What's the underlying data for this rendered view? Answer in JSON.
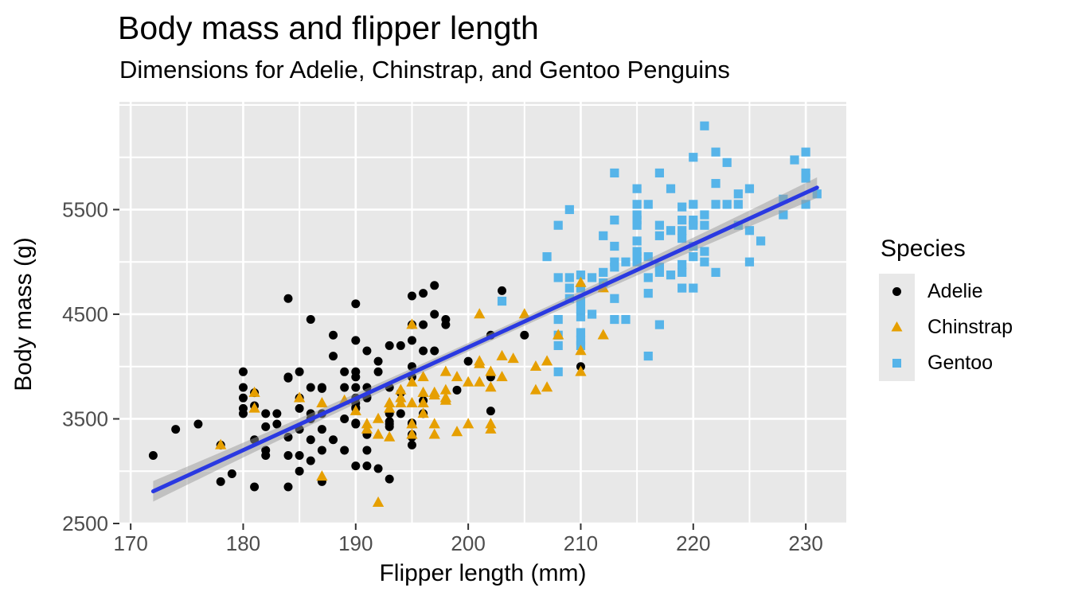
{
  "chart": {
    "title": "Body mass and flipper length",
    "subtitle": "Dimensions for Adelie, Chinstrap, and Gentoo Penguins",
    "xlabel": "Flipper length (mm)",
    "ylabel": "Body mass (g)"
  },
  "legend": {
    "title": "Species",
    "items": [
      {
        "label": "Adelie",
        "marker": "circle",
        "color": "#000000"
      },
      {
        "label": "Chinstrap",
        "marker": "triangle",
        "color": "#E69F00"
      },
      {
        "label": "Gentoo",
        "marker": "square",
        "color": "#56B4E9"
      }
    ]
  },
  "chart_data": {
    "type": "scatter",
    "title": "Body mass and flipper length",
    "subtitle": "Dimensions for Adelie, Chinstrap, and Gentoo Penguins",
    "xlabel": "Flipper length (mm)",
    "ylabel": "Body mass (g)",
    "legend_title": "Species",
    "legend_position": "right",
    "grid": "on",
    "panel_bg": "#e8e8e8",
    "grid_color": "#ffffff",
    "tick_label_color": "#4d4d4d",
    "x_domain": [
      169,
      233.6
    ],
    "y_domain": [
      2500,
      6530
    ],
    "x_ticks": [
      170,
      180,
      190,
      200,
      210,
      220,
      230
    ],
    "x_minor": [
      175,
      185,
      195,
      205,
      215,
      225
    ],
    "y_ticks": [
      2500,
      3500,
      4500,
      5500
    ],
    "y_minor": [
      3000,
      4000,
      5000,
      6000,
      6500
    ],
    "trend": {
      "type": "linear regression with confidence band",
      "slope": 49.2,
      "intercept": -5655,
      "x_start": 172,
      "x_end": 231,
      "line_color": "#2a39e1",
      "band_color": "#999999"
    },
    "series": [
      {
        "name": "Adelie",
        "marker": "circle",
        "color": "#000000",
        "points": [
          [
            172,
            3150
          ],
          [
            174,
            3400
          ],
          [
            176,
            3450
          ],
          [
            178,
            3250
          ],
          [
            178,
            2900
          ],
          [
            179,
            2975
          ],
          [
            180,
            3950
          ],
          [
            180,
            3800
          ],
          [
            180,
            3700
          ],
          [
            180,
            3600
          ],
          [
            180,
            3550
          ],
          [
            181,
            3750
          ],
          [
            181,
            3625
          ],
          [
            181,
            3300
          ],
          [
            181,
            2850
          ],
          [
            182,
            3550
          ],
          [
            182,
            3425
          ],
          [
            182,
            3200
          ],
          [
            182,
            3150
          ],
          [
            183,
            3550
          ],
          [
            183,
            3450
          ],
          [
            184,
            4650
          ],
          [
            184,
            3900
          ],
          [
            184,
            3890
          ],
          [
            184,
            3325
          ],
          [
            184,
            3150
          ],
          [
            184,
            2850
          ],
          [
            185,
            3950
          ],
          [
            185,
            3700
          ],
          [
            185,
            3600
          ],
          [
            185,
            3400
          ],
          [
            185,
            3150
          ],
          [
            185,
            3000
          ],
          [
            186,
            4450
          ],
          [
            186,
            3800
          ],
          [
            186,
            3550
          ],
          [
            186,
            3500
          ],
          [
            186,
            3300
          ],
          [
            186,
            3100
          ],
          [
            187,
            3800
          ],
          [
            187,
            3790
          ],
          [
            187,
            3550
          ],
          [
            187,
            3400
          ],
          [
            187,
            3200
          ],
          [
            187,
            2900
          ],
          [
            188,
            4300
          ],
          [
            188,
            4100
          ],
          [
            188,
            3300
          ],
          [
            189,
            3950
          ],
          [
            189,
            3800
          ],
          [
            189,
            3500
          ],
          [
            189,
            3200
          ],
          [
            190,
            4600
          ],
          [
            190,
            4250
          ],
          [
            190,
            3950
          ],
          [
            190,
            3900
          ],
          [
            190,
            3800
          ],
          [
            190,
            3700
          ],
          [
            190,
            3650
          ],
          [
            190,
            3600
          ],
          [
            190,
            3610
          ],
          [
            190,
            3450
          ],
          [
            190,
            3460
          ],
          [
            190,
            3050
          ],
          [
            191,
            4150
          ],
          [
            191,
            3800
          ],
          [
            191,
            3700
          ],
          [
            191,
            3710
          ],
          [
            191,
            3350
          ],
          [
            191,
            3200
          ],
          [
            191,
            3050
          ],
          [
            192,
            4050
          ],
          [
            192,
            3950
          ],
          [
            192,
            3025
          ],
          [
            193,
            4200
          ],
          [
            193,
            3800
          ],
          [
            193,
            3550
          ],
          [
            193,
            3475
          ],
          [
            193,
            3450
          ],
          [
            193,
            3425
          ],
          [
            193,
            2925
          ],
          [
            194,
            4200
          ],
          [
            194,
            3750
          ],
          [
            194,
            3550
          ],
          [
            195,
            4675
          ],
          [
            195,
            4400
          ],
          [
            195,
            4250
          ],
          [
            195,
            4000
          ],
          [
            195,
            3900
          ],
          [
            195,
            3450
          ],
          [
            195,
            3460
          ],
          [
            195,
            3350
          ],
          [
            195,
            3325
          ],
          [
            195,
            3250
          ],
          [
            196,
            4700
          ],
          [
            196,
            4400
          ],
          [
            196,
            4150
          ],
          [
            196,
            3675
          ],
          [
            196,
            3550
          ],
          [
            197,
            4775
          ],
          [
            197,
            4500
          ],
          [
            197,
            4150
          ],
          [
            198,
            4450
          ],
          [
            198,
            4400
          ],
          [
            199,
            3775
          ],
          [
            200,
            4050
          ],
          [
            202,
            4300
          ],
          [
            202,
            3900
          ],
          [
            202,
            3575
          ],
          [
            203,
            4725
          ],
          [
            205,
            4300
          ],
          [
            210,
            4000
          ]
        ]
      },
      {
        "name": "Chinstrap",
        "marker": "triangle",
        "color": "#E69F00",
        "points": [
          [
            178,
            3250
          ],
          [
            181,
            3750
          ],
          [
            181,
            3600
          ],
          [
            185,
            3700
          ],
          [
            187,
            3650
          ],
          [
            187,
            2950
          ],
          [
            189,
            3675
          ],
          [
            190,
            3575
          ],
          [
            191,
            3450
          ],
          [
            191,
            3400
          ],
          [
            192,
            3500
          ],
          [
            192,
            3350
          ],
          [
            192,
            2700
          ],
          [
            193,
            3650
          ],
          [
            193,
            3600
          ],
          [
            193,
            3325
          ],
          [
            194,
            3775
          ],
          [
            194,
            3700
          ],
          [
            194,
            3650
          ],
          [
            195,
            4400
          ],
          [
            195,
            3850
          ],
          [
            195,
            3650
          ],
          [
            195,
            3450
          ],
          [
            195,
            3350
          ],
          [
            196,
            3900
          ],
          [
            196,
            3750
          ],
          [
            196,
            3650
          ],
          [
            196,
            3550
          ],
          [
            197,
            3750
          ],
          [
            197,
            3725
          ],
          [
            197,
            3450
          ],
          [
            197,
            3350
          ],
          [
            198,
            3950
          ],
          [
            198,
            3775
          ],
          [
            198,
            3700
          ],
          [
            198,
            3675
          ],
          [
            199,
            3900
          ],
          [
            199,
            3375
          ],
          [
            200,
            3850
          ],
          [
            200,
            3450
          ],
          [
            201,
            4500
          ],
          [
            201,
            4050
          ],
          [
            201,
            4025
          ],
          [
            201,
            3850
          ],
          [
            202,
            3950
          ],
          [
            202,
            3800
          ],
          [
            202,
            3450
          ],
          [
            202,
            3400
          ],
          [
            203,
            4100
          ],
          [
            203,
            3900
          ],
          [
            204,
            4075
          ],
          [
            205,
            4500
          ],
          [
            206,
            4000
          ],
          [
            206,
            3775
          ],
          [
            207,
            4050
          ],
          [
            207,
            3800
          ],
          [
            208,
            4300
          ],
          [
            210,
            4800
          ],
          [
            210,
            4150
          ],
          [
            210,
            3950
          ],
          [
            212,
            4750
          ],
          [
            212,
            4300
          ]
        ]
      },
      {
        "name": "Gentoo",
        "marker": "square",
        "color": "#56B4E9",
        "points": [
          [
            203,
            4625
          ],
          [
            207,
            5050
          ],
          [
            208,
            5350
          ],
          [
            208,
            4850
          ],
          [
            208,
            4450
          ],
          [
            208,
            4300
          ],
          [
            208,
            4200
          ],
          [
            208,
            3950
          ],
          [
            209,
            5500
          ],
          [
            209,
            4850
          ],
          [
            209,
            4750
          ],
          [
            209,
            4650
          ],
          [
            210,
            4875
          ],
          [
            210,
            4750
          ],
          [
            210,
            4625
          ],
          [
            210,
            4550
          ],
          [
            210,
            4475
          ],
          [
            210,
            4325
          ],
          [
            210,
            4250
          ],
          [
            210,
            4200
          ],
          [
            211,
            4850
          ],
          [
            211,
            4500
          ],
          [
            212,
            5250
          ],
          [
            212,
            4900
          ],
          [
            212,
            4800
          ],
          [
            213,
            5850
          ],
          [
            213,
            5400
          ],
          [
            213,
            5150
          ],
          [
            213,
            5000
          ],
          [
            213,
            4950
          ],
          [
            213,
            4650
          ],
          [
            213,
            4450
          ],
          [
            214,
            5000
          ],
          [
            214,
            4450
          ],
          [
            215,
            5700
          ],
          [
            215,
            5550
          ],
          [
            215,
            5450
          ],
          [
            215,
            5400
          ],
          [
            215,
            5350
          ],
          [
            215,
            5200
          ],
          [
            215,
            5100
          ],
          [
            215,
            5050
          ],
          [
            215,
            5000
          ],
          [
            216,
            5550
          ],
          [
            216,
            5050
          ],
          [
            216,
            4850
          ],
          [
            216,
            4700
          ],
          [
            216,
            4100
          ],
          [
            217,
            5850
          ],
          [
            217,
            5350
          ],
          [
            217,
            5250
          ],
          [
            217,
            4950
          ],
          [
            217,
            4900
          ],
          [
            217,
            4400
          ],
          [
            218,
            5700
          ],
          [
            218,
            5300
          ],
          [
            218,
            4875
          ],
          [
            219,
            5525
          ],
          [
            219,
            5400
          ],
          [
            219,
            5300
          ],
          [
            219,
            5225
          ],
          [
            219,
            4975
          ],
          [
            219,
            4900
          ],
          [
            219,
            4750
          ],
          [
            220,
            6000
          ],
          [
            220,
            5550
          ],
          [
            220,
            5400
          ],
          [
            220,
            5350
          ],
          [
            220,
            5150
          ],
          [
            220,
            5050
          ],
          [
            220,
            4750
          ],
          [
            221,
            6300
          ],
          [
            221,
            5450
          ],
          [
            221,
            5350
          ],
          [
            221,
            5100
          ],
          [
            221,
            5000
          ],
          [
            222,
            6050
          ],
          [
            222,
            5750
          ],
          [
            222,
            5550
          ],
          [
            222,
            4900
          ],
          [
            223,
            5950
          ],
          [
            223,
            5550
          ],
          [
            224,
            5650
          ],
          [
            224,
            5550
          ],
          [
            224,
            5350
          ],
          [
            225,
            5700
          ],
          [
            225,
            5300
          ],
          [
            225,
            5000
          ],
          [
            226,
            5200
          ],
          [
            228,
            5600
          ],
          [
            228,
            5450
          ],
          [
            229,
            5975
          ],
          [
            230,
            6050
          ],
          [
            230,
            5850
          ],
          [
            230,
            5800
          ],
          [
            230,
            5550
          ],
          [
            231,
            5650
          ]
        ]
      }
    ]
  }
}
